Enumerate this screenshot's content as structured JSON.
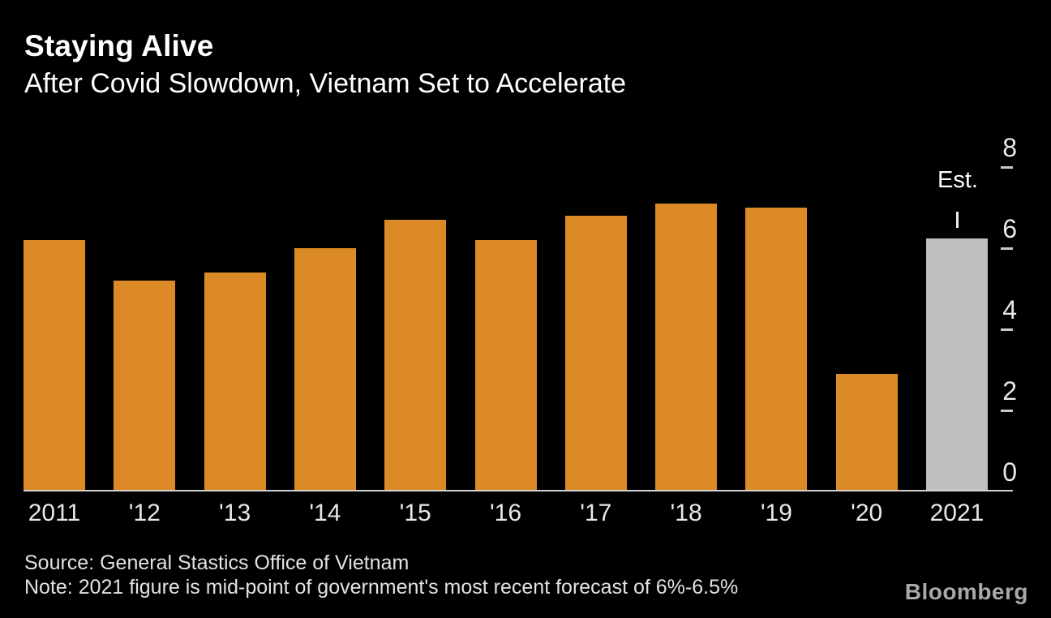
{
  "chart_data": {
    "type": "bar",
    "title": "Staying Alive",
    "subtitle": "After Covid Slowdown, Vietnam Set to Accelerate",
    "categories": [
      "2011",
      "'12",
      "'13",
      "'14",
      "'15",
      "'16",
      "'17",
      "'18",
      "'19",
      "'20",
      "2021"
    ],
    "values": [
      6.2,
      5.2,
      5.4,
      6.0,
      6.7,
      6.2,
      6.8,
      7.1,
      7.0,
      2.9,
      6.25
    ],
    "estimate_index": 10,
    "estimate_label": "Est.",
    "ylim": [
      0,
      8
    ],
    "yticks": [
      8,
      6,
      4,
      2,
      0
    ],
    "axis_side": "right",
    "grid": false,
    "legend": "none",
    "bar_color": "#DB8A25",
    "estimate_bar_color": "#BFBFBF"
  },
  "footer": {
    "source": "Source: General Stastics Office of Vietnam",
    "note": "Note: 2021 figure is mid-point of government's most recent forecast of 6%-6.5%",
    "brand": "Bloomberg"
  },
  "colors": {
    "background": "#000000",
    "axis_line": "#D3D3D3",
    "tick": "#C9C9C9",
    "label_text": "#E8E8E8",
    "title_text": "#FFFFFF",
    "footer_text": "#E2E2E2",
    "brand_text": "#A9A9A9"
  }
}
